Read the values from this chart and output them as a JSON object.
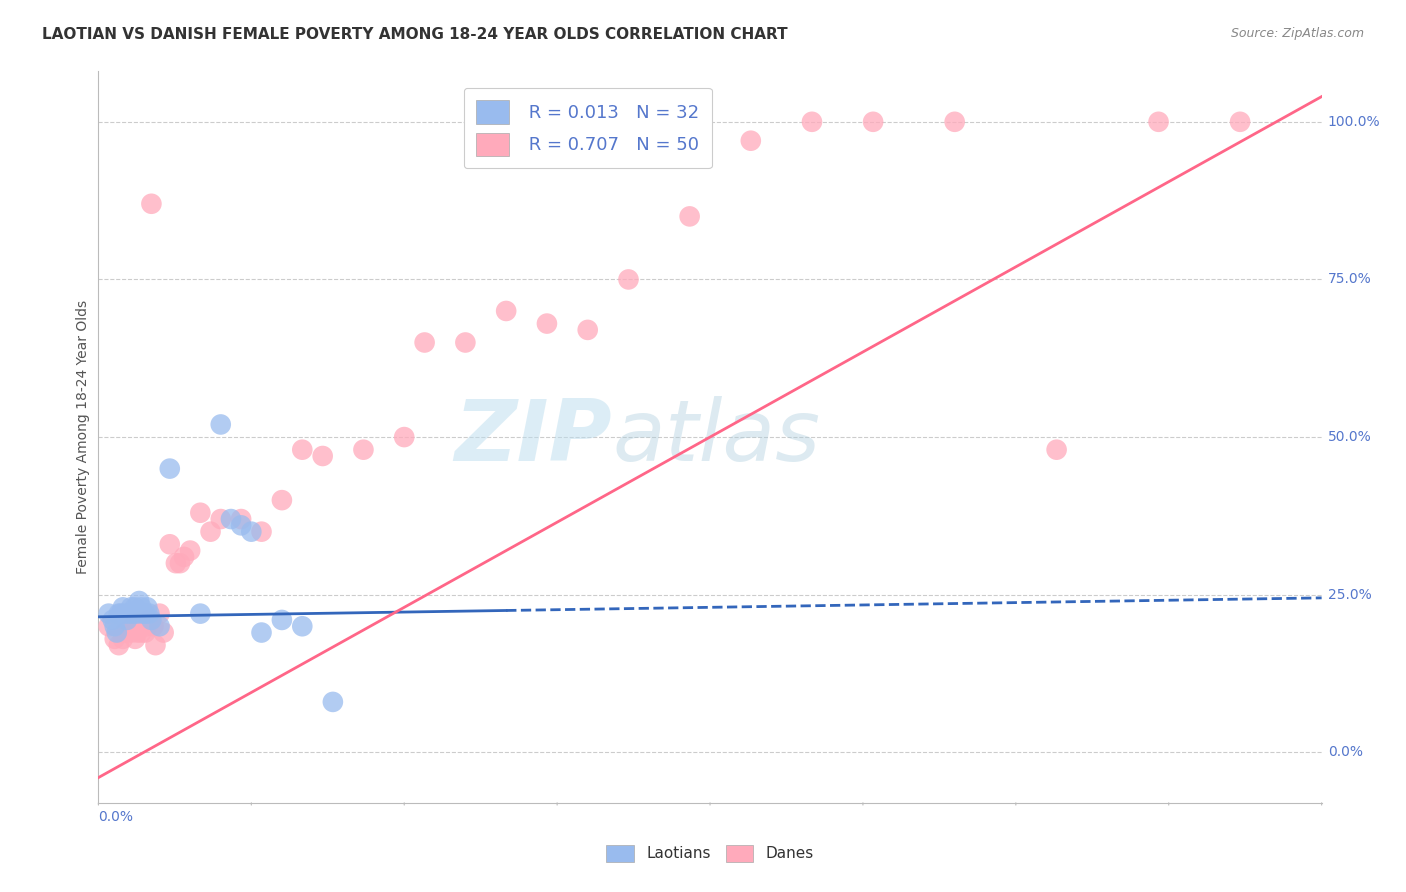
{
  "title": "LAOTIAN VS DANISH FEMALE POVERTY AMONG 18-24 YEAR OLDS CORRELATION CHART",
  "source": "Source: ZipAtlas.com",
  "ylabel": "Female Poverty Among 18-24 Year Olds",
  "watermark_zip": "ZIP",
  "watermark_atlas": "atlas",
  "legend_laotians_R": "0.013",
  "legend_laotians_N": "32",
  "legend_danes_R": "0.707",
  "legend_danes_N": "50",
  "laotians_color": "#99BBEE",
  "danes_color": "#FFAABB",
  "laotians_line_color": "#3366BB",
  "danes_line_color": "#FF6688",
  "background_color": "#FFFFFF",
  "grid_color": "#CCCCCC",
  "title_color": "#333333",
  "axis_label_color": "#5577CC",
  "xmin": 0.0,
  "xmax": 0.6,
  "ymin": -0.08,
  "ymax": 1.08,
  "right_yticks": [
    0.0,
    0.25,
    0.5,
    0.75,
    1.0
  ],
  "right_yticklabels": [
    "0.0%",
    "25.0%",
    "50.0%",
    "75.0%",
    "100.0%"
  ],
  "laotians_x": [
    0.005,
    0.007,
    0.008,
    0.009,
    0.01,
    0.011,
    0.012,
    0.013,
    0.014,
    0.015,
    0.016,
    0.017,
    0.018,
    0.019,
    0.02,
    0.021,
    0.022,
    0.023,
    0.024,
    0.025,
    0.026,
    0.03,
    0.035,
    0.05,
    0.06,
    0.065,
    0.07,
    0.075,
    0.08,
    0.09,
    0.1,
    0.115
  ],
  "laotians_y": [
    0.22,
    0.21,
    0.2,
    0.19,
    0.22,
    0.22,
    0.23,
    0.22,
    0.21,
    0.22,
    0.23,
    0.22,
    0.23,
    0.22,
    0.24,
    0.23,
    0.22,
    0.22,
    0.23,
    0.22,
    0.21,
    0.2,
    0.45,
    0.22,
    0.52,
    0.37,
    0.36,
    0.35,
    0.19,
    0.21,
    0.2,
    0.08
  ],
  "danes_x": [
    0.005,
    0.008,
    0.01,
    0.012,
    0.013,
    0.015,
    0.016,
    0.017,
    0.018,
    0.019,
    0.02,
    0.021,
    0.022,
    0.023,
    0.024,
    0.025,
    0.026,
    0.027,
    0.028,
    0.03,
    0.032,
    0.035,
    0.038,
    0.04,
    0.042,
    0.045,
    0.05,
    0.055,
    0.06,
    0.07,
    0.08,
    0.09,
    0.1,
    0.11,
    0.13,
    0.15,
    0.16,
    0.18,
    0.2,
    0.22,
    0.24,
    0.26,
    0.29,
    0.32,
    0.35,
    0.38,
    0.42,
    0.47,
    0.52,
    0.56
  ],
  "danes_y": [
    0.2,
    0.18,
    0.17,
    0.18,
    0.19,
    0.2,
    0.19,
    0.2,
    0.18,
    0.19,
    0.2,
    0.19,
    0.21,
    0.19,
    0.2,
    0.21,
    0.87,
    0.2,
    0.17,
    0.22,
    0.19,
    0.33,
    0.3,
    0.3,
    0.31,
    0.32,
    0.38,
    0.35,
    0.37,
    0.37,
    0.35,
    0.4,
    0.48,
    0.47,
    0.48,
    0.5,
    0.65,
    0.65,
    0.7,
    0.68,
    0.67,
    0.75,
    0.85,
    0.97,
    1.0,
    1.0,
    1.0,
    0.48,
    1.0,
    1.0
  ],
  "laotians_trend_x": [
    0.0,
    0.2
  ],
  "laotians_trend_y": [
    0.215,
    0.225
  ],
  "danes_trend_x": [
    0.0,
    0.6
  ],
  "danes_trend_y": [
    -0.04,
    1.04
  ],
  "laotians_dashed_trend_x": [
    0.2,
    0.6
  ],
  "laotians_dashed_trend_y": [
    0.225,
    0.245
  ]
}
